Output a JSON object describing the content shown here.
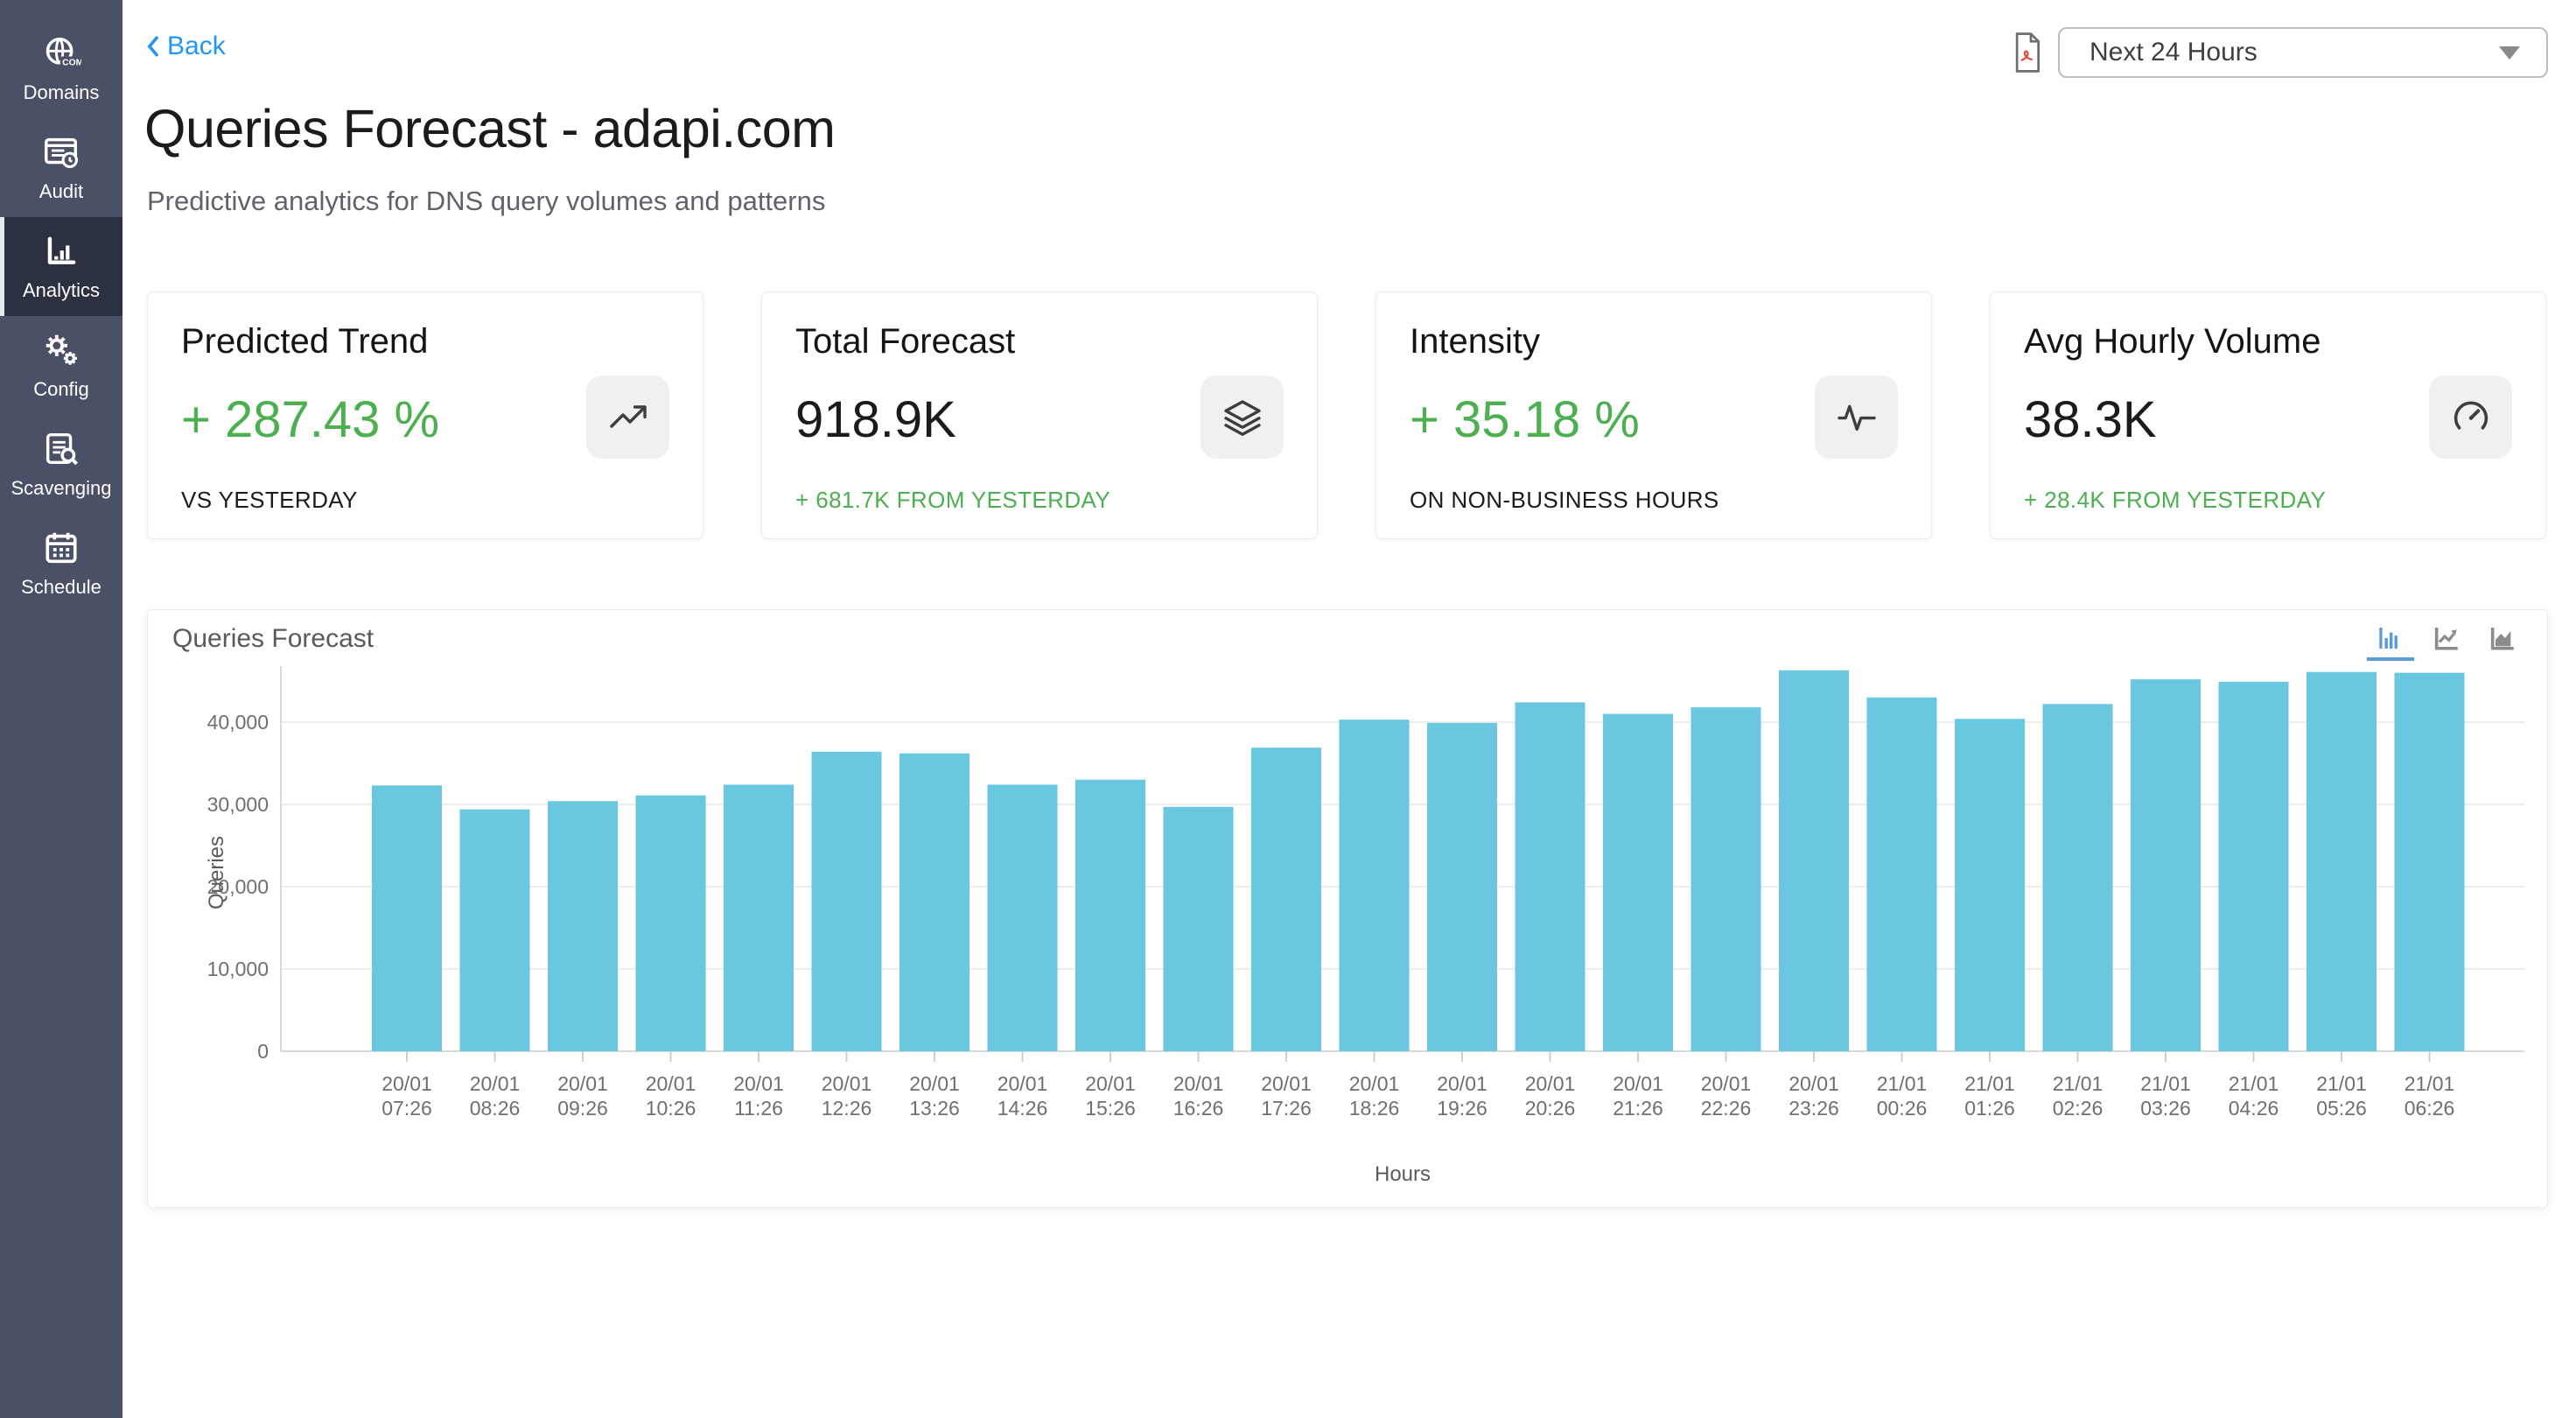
{
  "sidebar": {
    "items": [
      {
        "label": "Domains",
        "icon": "globe-com-icon",
        "active": false
      },
      {
        "label": "Audit",
        "icon": "audit-document-icon",
        "active": false
      },
      {
        "label": "Analytics",
        "icon": "bar-chart-icon",
        "active": true
      },
      {
        "label": "Config",
        "icon": "gears-icon",
        "active": false
      },
      {
        "label": "Scavenging",
        "icon": "document-search-icon",
        "active": false
      },
      {
        "label": "Schedule",
        "icon": "calendar-icon",
        "active": false
      }
    ]
  },
  "header": {
    "back_label": "Back",
    "title": "Queries Forecast - adapi.com",
    "subtitle": "Predictive analytics for DNS query volumes and patterns",
    "export_icon": "pdf-export-icon",
    "range_selector": {
      "value": "Next 24 Hours"
    }
  },
  "stats": [
    {
      "title": "Predicted Trend",
      "value": "+ 287.43 %",
      "caption": "VS YESTERDAY",
      "icon": "trending-up-icon"
    },
    {
      "title": "Total Forecast",
      "value": "918.9K",
      "caption": "+ 681.7K FROM YESTERDAY",
      "icon": "layers-icon"
    },
    {
      "title": "Intensity",
      "value": "+ 35.18 %",
      "caption": "ON NON-BUSINESS HOURS",
      "icon": "activity-pulse-icon"
    },
    {
      "title": "Avg Hourly Volume",
      "value": "38.3K",
      "caption": "+ 28.4K FROM YESTERDAY",
      "icon": "gauge-icon"
    }
  ],
  "chart_panel": {
    "title": "Queries Forecast",
    "view_toggles": [
      {
        "icon": "bar-chart-view-icon",
        "active": true
      },
      {
        "icon": "line-chart-view-icon",
        "active": false
      },
      {
        "icon": "area-chart-view-icon",
        "active": false
      }
    ]
  },
  "chart_data": {
    "type": "bar",
    "title": "Queries Forecast",
    "xlabel": "Hours",
    "ylabel": "Queries",
    "ylim": [
      0,
      48000
    ],
    "yticks": [
      0,
      10000,
      20000,
      30000,
      40000
    ],
    "grid": true,
    "legend": false,
    "bar_color": "#69C7E0",
    "categories": [
      "20/01 07:26",
      "20/01 08:26",
      "20/01 09:26",
      "20/01 10:26",
      "20/01 11:26",
      "20/01 12:26",
      "20/01 13:26",
      "20/01 14:26",
      "20/01 15:26",
      "20/01 16:26",
      "20/01 17:26",
      "20/01 18:26",
      "20/01 19:26",
      "20/01 20:26",
      "20/01 21:26",
      "20/01 22:26",
      "20/01 23:26",
      "21/01 00:26",
      "21/01 01:26",
      "21/01 02:26",
      "21/01 03:26",
      "21/01 04:26",
      "21/01 05:26",
      "21/01 06:26"
    ],
    "values": [
      32300,
      29400,
      30400,
      31100,
      32400,
      36400,
      36200,
      32400,
      33000,
      29700,
      36900,
      40300,
      39900,
      42400,
      41000,
      41800,
      46300,
      43000,
      40400,
      42200,
      45200,
      44900,
      46100,
      46000
    ]
  },
  "colors": {
    "sidebar_bg": "#4A5065",
    "sidebar_active_bg": "#2B3140",
    "accent_blue": "#2196F3",
    "positive_green": "#4CAF50",
    "bar_blue": "#69C7E0",
    "toggle_active_blue": "#5A9BE0"
  }
}
